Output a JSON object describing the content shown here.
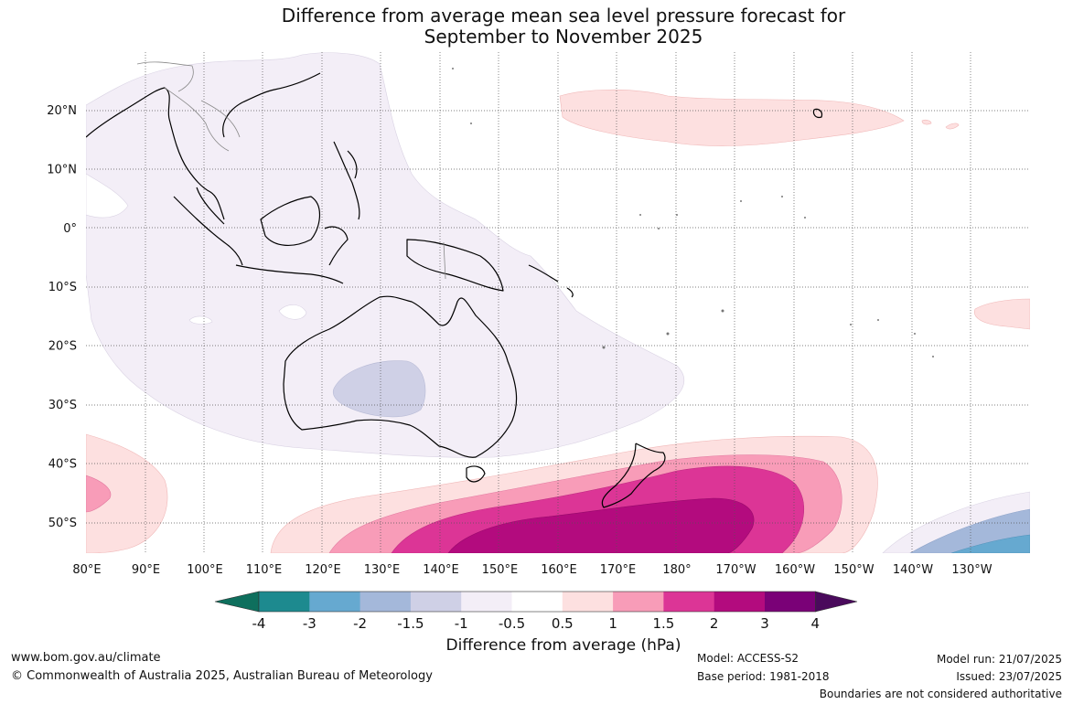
{
  "title_line1": "Difference from average mean sea level pressure forecast for",
  "title_line2": "September to November 2025",
  "map": {
    "lon_labels": [
      "80°E",
      "90°E",
      "100°E",
      "110°E",
      "120°E",
      "130°E",
      "140°E",
      "150°E",
      "160°E",
      "170°E",
      "180°",
      "170°W",
      "160°W",
      "150°W",
      "140°W",
      "130°W"
    ],
    "lat_labels": [
      "20°N",
      "10°N",
      "0°",
      "10°S",
      "20°S",
      "30°S",
      "40°S",
      "50°S"
    ]
  },
  "colorbar": {
    "label": "Difference from average (hPa)",
    "ticks": [
      "-4",
      "-3",
      "-2",
      "-1.5",
      "-1",
      "-0.5",
      "0.5",
      "1",
      "1.5",
      "2",
      "3",
      "4"
    ],
    "colors": [
      "#1d8a8f",
      "#66a9d0",
      "#a4b8da",
      "#cfd0e6",
      "#f3eef7",
      "#ffffff",
      "#fde0e0",
      "#f89cb8",
      "#dc3596",
      "#b30b7e",
      "#7a0177"
    ],
    "extend_low_color": "#0e6f5d",
    "extend_high_color": "#4a0a5c"
  },
  "footer": {
    "website": "www.bom.gov.au/climate",
    "copyright": "© Commonwealth of Australia 2025, Australian Bureau of Meteorology",
    "model": "Model: ACCESS-S2",
    "base_period": "Base period: 1981-2018",
    "model_run": "Model run: 21/07/2025",
    "issued": "Issued: 23/07/2025",
    "disclaimer": "Boundaries are not considered authoritative"
  }
}
